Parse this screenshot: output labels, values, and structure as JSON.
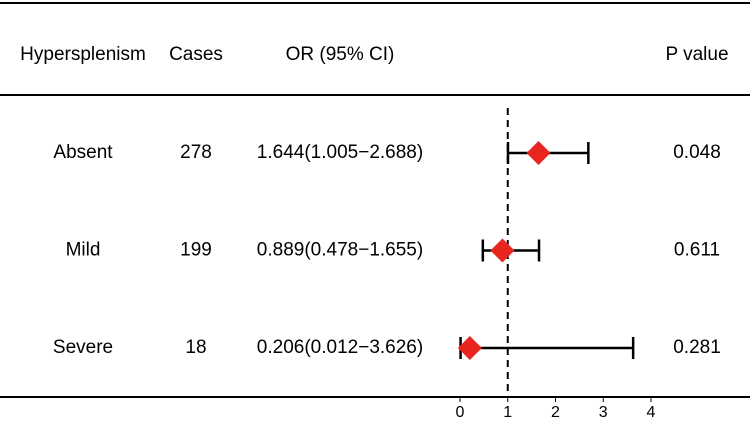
{
  "chart_data": {
    "type": "forest",
    "columns": [
      "Hypersplenism",
      "Cases",
      "OR (95% CI)",
      "P value"
    ],
    "categories": [
      "Absent",
      "Mild",
      "Severe"
    ],
    "cases": [
      278,
      199,
      18
    ],
    "values": [
      1.644,
      0.889,
      0.206
    ],
    "lower": [
      1.005,
      0.478,
      0.012
    ],
    "upper": [
      2.688,
      1.655,
      3.626
    ],
    "value_labels": [
      "1.644(1.005−2.688)",
      "0.889(0.478−1.655)",
      "0.206(0.012−3.626)"
    ],
    "p_values": [
      0.048,
      0.611,
      0.281
    ],
    "xlim": [
      0,
      4
    ],
    "xticks": [
      0,
      1,
      2,
      3,
      4
    ],
    "ref_line": 1,
    "color": "#e8251f"
  }
}
